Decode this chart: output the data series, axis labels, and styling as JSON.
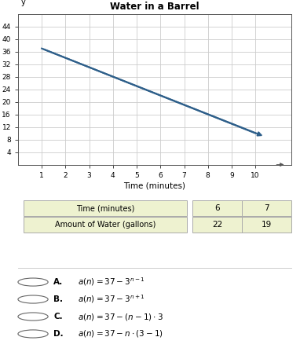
{
  "title": "Water in a Barrel",
  "xlabel": "Time (minutes)",
  "ylabel": "Amount of Water (gallons)",
  "line_x": [
    1,
    10
  ],
  "line_y": [
    37,
    10
  ],
  "line_color": "#2e5f8a",
  "xlim": [
    0,
    11.5
  ],
  "ylim": [
    0,
    48
  ],
  "xticks": [
    1,
    2,
    3,
    4,
    5,
    6,
    7,
    8,
    9,
    10
  ],
  "yticks": [
    4,
    8,
    12,
    16,
    20,
    24,
    28,
    32,
    36,
    40,
    44
  ],
  "grid_color": "#cccccc",
  "bg_color": "#ffffff",
  "table_headers": [
    "Time (minutes)",
    "6",
    "7"
  ],
  "table_row2": [
    "Amount of Water (gallons)",
    "22",
    "19"
  ],
  "table_header_bg": "#eef2d0",
  "table_border_color": "#aaaaaa",
  "separator_color": "#cccccc",
  "option_labels": [
    "A.",
    "B.",
    "C.",
    "D."
  ],
  "option_exprs": [
    "$a(n) = 37 - 3^{n-1}$",
    "$a(n) = 37 - 3^{n+1}$",
    "$a(n) = 37 - (n - 1) \\cdot 3$",
    "$a(n) = 37 - n \\cdot (3 - 1)$"
  ]
}
